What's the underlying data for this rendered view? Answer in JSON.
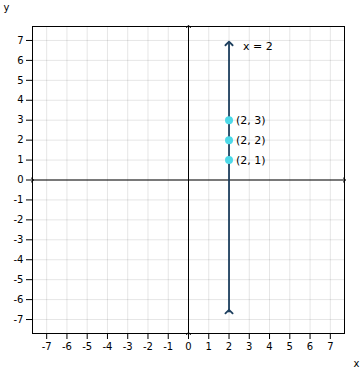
{
  "chart_data": {
    "type": "scatter",
    "xlabel": "x",
    "ylabel": "y",
    "xlim": [
      -7.7,
      7.7
    ],
    "ylim": [
      -7.7,
      7.7
    ],
    "xticks": [
      -7,
      -6,
      -5,
      -4,
      -3,
      -2,
      -1,
      0,
      1,
      2,
      3,
      4,
      5,
      6,
      7
    ],
    "yticks": [
      -7,
      -6,
      -5,
      -4,
      -3,
      -2,
      -1,
      0,
      1,
      2,
      3,
      4,
      5,
      6,
      7
    ],
    "grid": true,
    "series": [
      {
        "type": "line",
        "color": "#1d3f5e",
        "marker": "arrow",
        "x": [
          2,
          2
        ],
        "values": [
          -6.6,
          6.85
        ]
      },
      {
        "type": "scatter",
        "color": "#4dd9e8",
        "x": [
          2,
          2,
          2
        ],
        "values": [
          1,
          2,
          3
        ]
      }
    ],
    "annotations": [
      {
        "text": "(2, 1)",
        "x": 2,
        "y": 1
      },
      {
        "text": "(2, 2)",
        "x": 2,
        "y": 2
      },
      {
        "text": "(2, 3)",
        "x": 2,
        "y": 3
      },
      {
        "text": "x = 2",
        "x": 2.35,
        "y": 6.7
      }
    ]
  }
}
